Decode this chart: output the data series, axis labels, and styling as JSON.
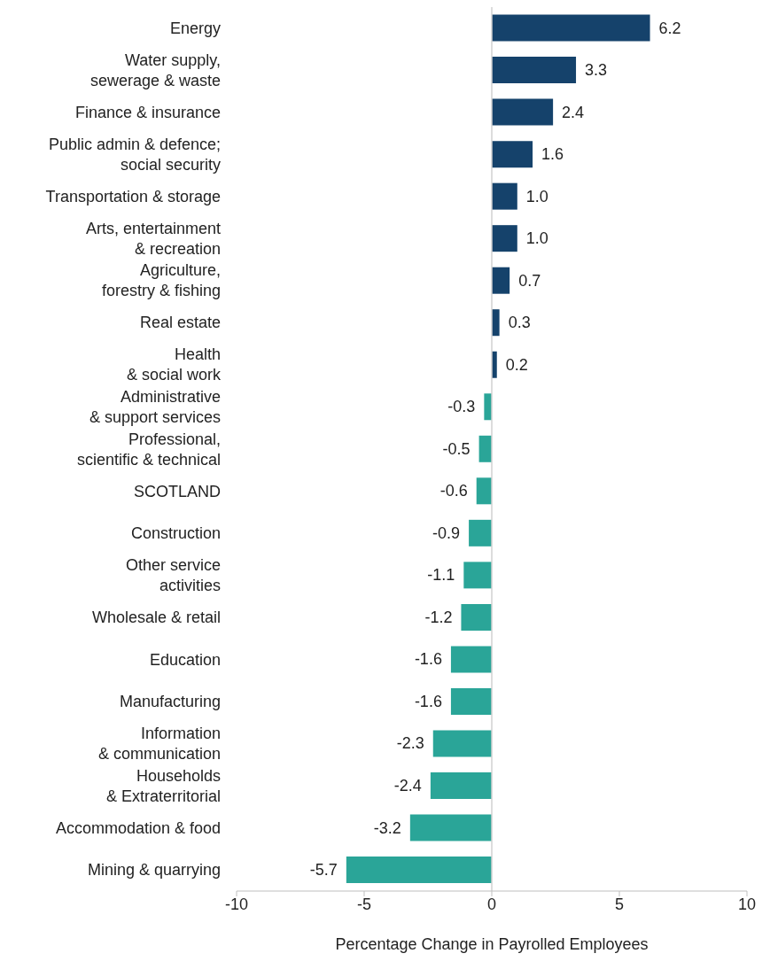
{
  "chart_data": {
    "type": "bar",
    "orientation": "horizontal",
    "xlabel": "Percentage Change in Payrolled Employees",
    "categories": [
      "Energy",
      "Water supply,\nsewerage & waste",
      "Finance & insurance",
      "Public admin & defence;\nsocial security",
      "Transportation & storage",
      "Arts, entertainment\n& recreation",
      "Agriculture,\nforestry & fishing",
      "Real estate",
      "Health\n& social work",
      "Administrative\n& support services",
      "Professional,\nscientific & technical",
      "SCOTLAND",
      "Construction",
      "Other service\nactivities",
      "Wholesale & retail",
      "Education",
      "Manufacturing",
      "Information\n& communication",
      "Households\n& Extraterritorial",
      "Accommodation & food",
      "Mining & quarrying"
    ],
    "values": [
      6.2,
      3.3,
      2.4,
      1.6,
      1.0,
      1.0,
      0.7,
      0.3,
      0.2,
      -0.3,
      -0.5,
      -0.6,
      -0.9,
      -1.1,
      -1.2,
      -1.6,
      -1.6,
      -2.3,
      -2.4,
      -3.2,
      -5.7
    ],
    "value_labels": [
      "6.2",
      "3.3",
      "2.4",
      "1.6",
      "1.0",
      "1.0",
      "0.7",
      "0.3",
      "0.2",
      "-0.3",
      "-0.5",
      "-0.6",
      "-0.9",
      "-1.1",
      "-1.2",
      "-1.6",
      "-1.6",
      "-2.3",
      "-2.4",
      "-3.2",
      "-5.7"
    ],
    "colors": [
      "#15426b",
      "#15426b",
      "#15426b",
      "#15426b",
      "#15426b",
      "#15426b",
      "#15426b",
      "#15426b",
      "#15426b",
      "#2aa598",
      "#2aa598",
      "#2aa598",
      "#2aa598",
      "#2aa598",
      "#2aa598",
      "#2aa598",
      "#2aa598",
      "#2aa598",
      "#2aa598",
      "#2aa598",
      "#2aa598"
    ],
    "ref_lines": [
      {
        "axis": "x",
        "value": 0,
        "color": "#d0d0d0"
      }
    ],
    "xlim": [
      -10,
      10
    ],
    "xticks": [
      -10,
      -5,
      0,
      5,
      10
    ]
  }
}
